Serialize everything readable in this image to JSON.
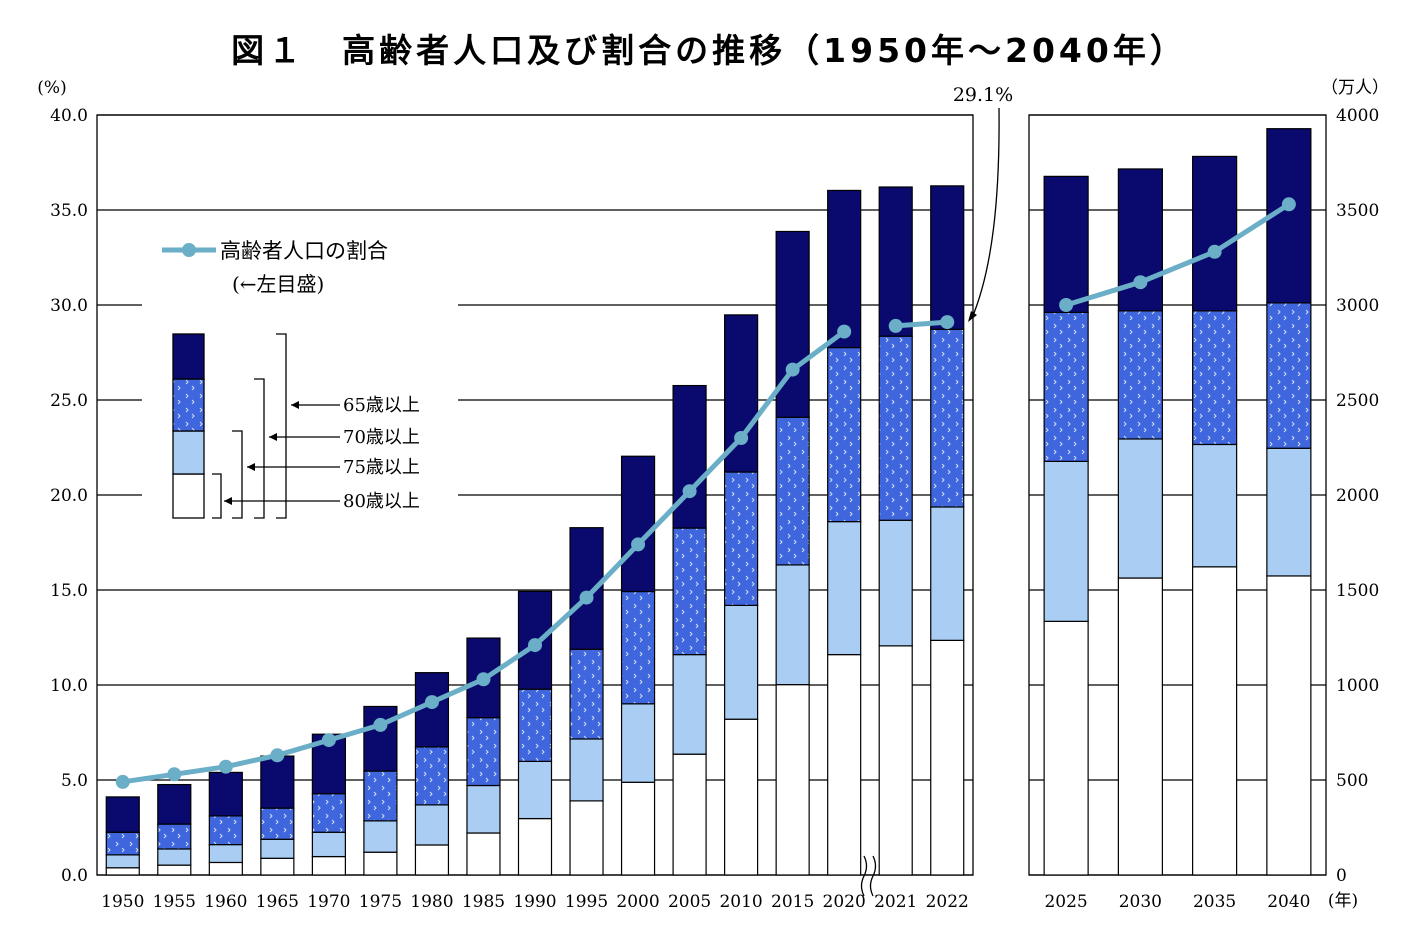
{
  "title": "図１　高齢者人口及び割合の推移（1950年～2040年）",
  "left_axis_unit": "(%)",
  "right_axis_unit": "（万人）",
  "x_axis_unit": "(年)",
  "annotation_29_1": "29.1%",
  "legend": {
    "line_label": "高齢者人口の割合",
    "line_sublabel": "(←左目盛)",
    "brackets": [
      "65歳以上",
      "70歳以上",
      "75歳以上",
      "80歳以上"
    ]
  },
  "colors": {
    "age_65_69": "#0a0a6e",
    "age_70_74": "#3f66dd",
    "age_75_79": "#a9cdf3",
    "age_80_plus": "#ffffff",
    "ratio_line": "#6aaec7",
    "grid": "#000000"
  },
  "chart_data": {
    "type": "bar",
    "stacked": true,
    "title": "図１　高齢者人口及び割合の推移（1950年～2040年）",
    "categories": [
      "1950",
      "1955",
      "1960",
      "1965",
      "1970",
      "1975",
      "1980",
      "1985",
      "1990",
      "1995",
      "2000",
      "2005",
      "2010",
      "2015",
      "2020",
      "2021",
      "2022",
      "2025",
      "2030",
      "2035",
      "2040"
    ],
    "left_axis": {
      "label": "(%)",
      "ylim": [
        0,
        40
      ],
      "ticks": [
        "0.0",
        "5.0",
        "10.0",
        "15.0",
        "20.0",
        "25.0",
        "30.0",
        "35.0",
        "40.0"
      ]
    },
    "right_axis": {
      "label": "（万人）",
      "ylim": [
        0,
        4000
      ],
      "ticks": [
        "0",
        "500",
        "1000",
        "1500",
        "2000",
        "2500",
        "3000",
        "3500",
        "4000"
      ]
    },
    "series": [
      {
        "name": "80歳以上",
        "axis": "right",
        "values": [
          38,
          52,
          66,
          88,
          97,
          120,
          158,
          221,
          297,
          390,
          488,
          636,
          820,
          1002,
          1160,
          1206,
          1235,
          1335,
          1563,
          1622,
          1574
        ]
      },
      {
        "name": "75歳以上",
        "axis": "right",
        "values": [
          106,
          137,
          160,
          188,
          225,
          285,
          369,
          471,
          598,
          716,
          901,
          1160,
          1419,
          1632,
          1860,
          1867,
          1937,
          2177,
          2295,
          2266,
          2246
        ]
      },
      {
        "name": "70歳以上",
        "axis": "right",
        "values": [
          225,
          268,
          311,
          352,
          428,
          547,
          674,
          828,
          978,
          1188,
          1492,
          1826,
          2121,
          2409,
          2776,
          2836,
          2872,
          2961,
          2969,
          2969,
          3011
        ]
      },
      {
        "name": "65歳以上",
        "axis": "right",
        "values": [
          411,
          476,
          540,
          626,
          741,
          887,
          1065,
          1247,
          1493,
          1828,
          2204,
          2576,
          2948,
          3387,
          3603,
          3621,
          3627,
          3677,
          3716,
          3782,
          3928
        ]
      },
      {
        "name": "高齢者人口の割合",
        "axis": "left",
        "type": "line",
        "values": [
          4.9,
          5.3,
          5.7,
          6.3,
          7.1,
          7.9,
          9.1,
          10.3,
          12.1,
          14.6,
          17.4,
          20.2,
          23.0,
          26.6,
          28.6,
          28.9,
          29.1,
          30.0,
          31.2,
          32.8,
          35.3
        ]
      }
    ],
    "grid": true,
    "legend_position": "upper-left"
  }
}
